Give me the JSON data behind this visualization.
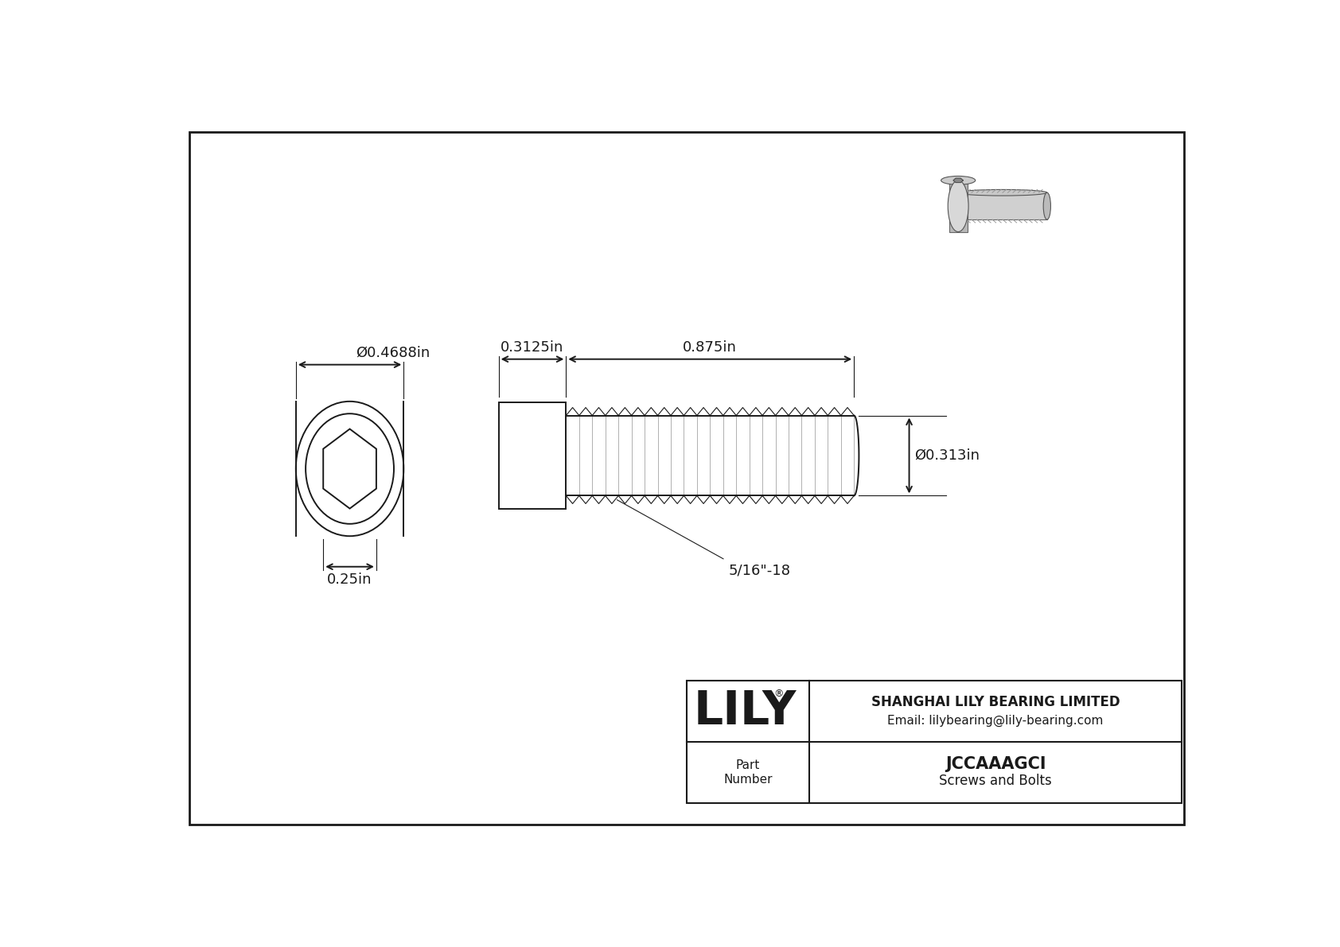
{
  "bg_color": "#ffffff",
  "line_color": "#1a1a1a",
  "title_company": "SHANGHAI LILY BEARING LIMITED",
  "title_email": "Email: lilybearing@lily-bearing.com",
  "part_number": "JCCAAAGCI",
  "part_category": "Screws and Bolts",
  "part_label": "Part\nNumber",
  "dim_head_diameter": "Ø0.4688in",
  "dim_socket_width": "0.25in",
  "dim_head_length": "0.3125in",
  "dim_shaft_length": "0.875in",
  "dim_shaft_diameter": "Ø0.313in",
  "dim_thread_label": "5/16\"-18",
  "font_size_dim": 13,
  "font_size_company": 12,
  "font_size_part": 15,
  "font_size_logo": 42
}
